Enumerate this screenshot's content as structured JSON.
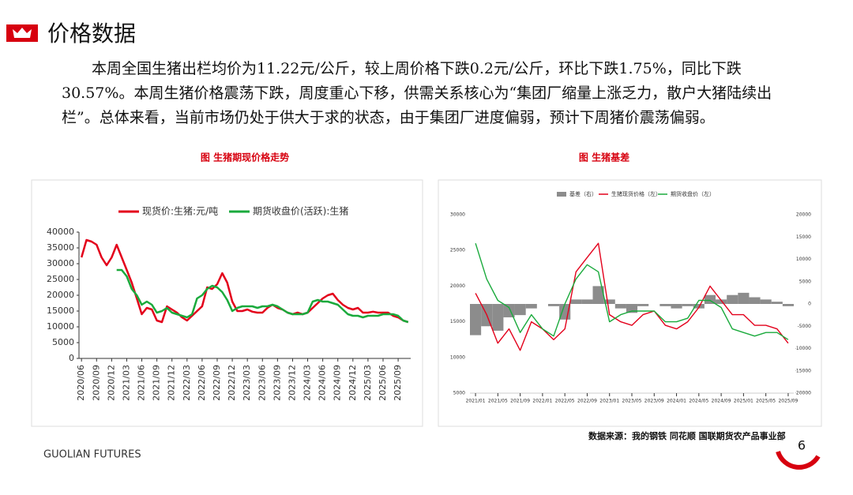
{
  "header": {
    "title": "价格数据"
  },
  "body": {
    "paragraph": "本周全国生猪出栏均价为11.22元/公斤，较上周价格下跌0.2元/公斤，环比下跌1.75%，同比下跌30.57%。本周生猪价格震荡下跌，周度重心下移，供需关系核心为“集团厂缩量上涨乏力，散户大猪陆续出栏”。总体来看，当前市场仍处于供大于求的状态，由于集团厂进度偏弱，预计下周猪价震荡偏弱。"
  },
  "chart_data": [
    {
      "type": "line",
      "title": "图 生猪期现价格走势",
      "categories": [
        "2020/06",
        null,
        null,
        "2020/09",
        null,
        null,
        "2020/12",
        null,
        null,
        "2021/03",
        null,
        null,
        "2021/06",
        null,
        null,
        "2021/09",
        null,
        null,
        "2021/12",
        null,
        null,
        "2022/03",
        null,
        null,
        "2022/06",
        null,
        null,
        "2022/09",
        null,
        null,
        "2022/12",
        null,
        null,
        "2023/03",
        null,
        null,
        "2023/06",
        null,
        null,
        "2023/09",
        null,
        null,
        "2023/12",
        null,
        null,
        "2024/03",
        null,
        null,
        "2024/06",
        null,
        null,
        "2024/09",
        null,
        null,
        "2024/12",
        null,
        null,
        "2025/03",
        null,
        null,
        "2025/06",
        null,
        null,
        "2025/09",
        null,
        null
      ],
      "series": [
        {
          "name": "现货价:生猪:元/吨",
          "color": "#e3001b",
          "values": [
            32000,
            37500,
            37000,
            36000,
            32000,
            29500,
            32000,
            36000,
            32000,
            28000,
            24000,
            19000,
            14000,
            16000,
            15500,
            12000,
            11500,
            16500,
            15500,
            14500,
            13000,
            12000,
            13500,
            15000,
            16500,
            22500,
            22000,
            23500,
            27000,
            24000,
            18000,
            15000,
            15000,
            15500,
            14800,
            14500,
            14500,
            16000,
            17000,
            16000,
            15500,
            14500,
            14000,
            14500,
            14000,
            14500,
            16000,
            17500,
            19000,
            20000,
            20500,
            18500,
            17000,
            16000,
            15500,
            16000,
            14500,
            14500,
            14800,
            14500,
            14500,
            14500,
            13500,
            13000,
            12000,
            11500
          ]
        },
        {
          "name": "期货收盘价(活跃):生猪",
          "color": "#1aaa3c",
          "values": [
            null,
            null,
            null,
            null,
            null,
            null,
            null,
            28000,
            28000,
            26000,
            22000,
            20000,
            17000,
            18000,
            17000,
            14500,
            15000,
            16000,
            14500,
            14000,
            13500,
            13000,
            14000,
            19000,
            20000,
            22000,
            23000,
            22500,
            21000,
            18500,
            15000,
            16000,
            16500,
            16500,
            16500,
            16000,
            16500,
            16500,
            17000,
            16500,
            15500,
            14500,
            14000,
            14000,
            14000,
            14500,
            18000,
            18500,
            18000,
            18000,
            17500,
            17000,
            15500,
            14000,
            13500,
            13500,
            13000,
            13500,
            13500,
            13500,
            14000,
            14000,
            14000,
            13500,
            12000,
            11500
          ]
        }
      ],
      "ylim": [
        0,
        40000
      ],
      "yticks": [
        0,
        5000,
        10000,
        15000,
        20000,
        25000,
        30000,
        35000,
        40000
      ]
    },
    {
      "type": "combo",
      "title": "图 生猪基差",
      "categories": [
        "2021/01",
        null,
        "2021/05",
        null,
        "2021/09",
        null,
        "2022/01",
        null,
        "2022/05",
        null,
        "2022/09",
        null,
        "2023/01",
        null,
        "2023/05",
        null,
        "2023/09",
        null,
        "2024/01",
        null,
        "2024/05",
        null,
        "2024/09",
        null,
        "2025/01",
        null,
        "2025/05",
        null,
        "2025/09"
      ],
      "series": [
        {
          "name": "基差（右）",
          "type": "bar",
          "axis": "y2",
          "color": "#8c8c8c",
          "values": [
            -7000,
            -5000,
            -6000,
            -3000,
            -2500,
            -1000,
            0,
            -500,
            -3500,
            1000,
            1000,
            4000,
            1000,
            -1000,
            -2000,
            -500,
            0,
            -500,
            -1000,
            -500,
            -1000,
            2000,
            1000,
            2000,
            2500,
            1500,
            1000,
            500,
            -500
          ]
        },
        {
          "name": "生猪现货价格（左）",
          "type": "line",
          "color": "#e3001b",
          "values": [
            19000,
            16000,
            12000,
            14000,
            11000,
            15000,
            14000,
            12500,
            14000,
            22000,
            24000,
            26000,
            16000,
            15000,
            14500,
            16000,
            16500,
            14500,
            14000,
            15000,
            17000,
            20000,
            18000,
            16000,
            16000,
            14500,
            14500,
            14000,
            12000
          ]
        },
        {
          "name": "期货收盘价（左）",
          "type": "line",
          "color": "#1aaa3c",
          "values": [
            26000,
            21000,
            18000,
            17000,
            13500,
            16000,
            14000,
            13000,
            17500,
            21000,
            23000,
            22000,
            15000,
            16000,
            16500,
            16500,
            16500,
            15000,
            15000,
            15500,
            18000,
            18000,
            17000,
            14000,
            13500,
            13000,
            13500,
            13500,
            12500
          ]
        }
      ],
      "ylim": [
        5000,
        30000
      ],
      "yticks": [
        5000,
        10000,
        15000,
        20000,
        25000,
        30000
      ],
      "y2lim": [
        -20000,
        20000
      ],
      "y2ticks": [
        -20000,
        -15000,
        -10000,
        -5000,
        0,
        5000,
        10000,
        15000,
        20000
      ]
    }
  ],
  "footer": {
    "source": "数据来源：我的钢铁 同花顺 国联期货农产品事业部",
    "brand": "GUOLIAN FUTURES",
    "page": "6"
  }
}
